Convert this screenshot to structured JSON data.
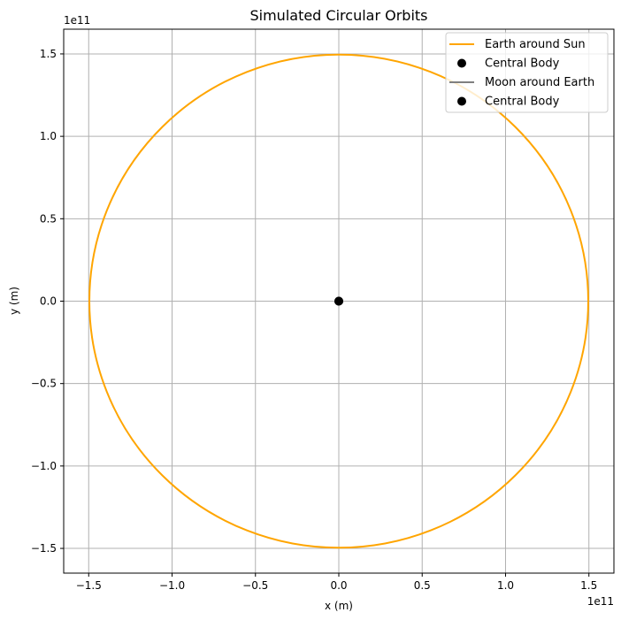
{
  "chart_data": {
    "type": "line",
    "title": "Simulated Circular Orbits",
    "xlabel": "x (m)",
    "ylabel": "y (m)",
    "x_offset_label": "1e11",
    "y_offset_label": "1e11",
    "xlim": [
      -1.65,
      1.65
    ],
    "ylim": [
      -1.65,
      1.65
    ],
    "grid": true,
    "legend_position": "top-right",
    "x_ticks": [
      {
        "value": -1.5,
        "label": "−1.5"
      },
      {
        "value": -1.0,
        "label": "−1.0"
      },
      {
        "value": -0.5,
        "label": "−0.5"
      },
      {
        "value": 0.0,
        "label": "0.0"
      },
      {
        "value": 0.5,
        "label": "0.5"
      },
      {
        "value": 1.0,
        "label": "1.0"
      },
      {
        "value": 1.5,
        "label": "1.5"
      }
    ],
    "y_ticks": [
      {
        "value": 1.5,
        "label": "1.5"
      },
      {
        "value": 1.0,
        "label": "1.0"
      },
      {
        "value": 0.5,
        "label": "0.5"
      },
      {
        "value": 0.0,
        "label": "0.0"
      },
      {
        "value": -0.5,
        "label": "−0.5"
      },
      {
        "value": -1.0,
        "label": "−1.0"
      },
      {
        "value": -1.5,
        "label": "−1.5"
      }
    ],
    "series": [
      {
        "name": "Earth around Sun",
        "kind": "orbit",
        "center": [
          0,
          0
        ],
        "radius": 1.496,
        "color": "#ffa500"
      },
      {
        "name": "Central Body",
        "kind": "point",
        "x": 0,
        "y": 0,
        "color": "#000000"
      },
      {
        "name": "Moon around Earth",
        "kind": "orbit",
        "center": [
          0,
          0
        ],
        "radius": 0.00384,
        "color": "#808080"
      },
      {
        "name": "Central Body",
        "kind": "point",
        "x": 0,
        "y": 0,
        "color": "#000000"
      }
    ]
  }
}
